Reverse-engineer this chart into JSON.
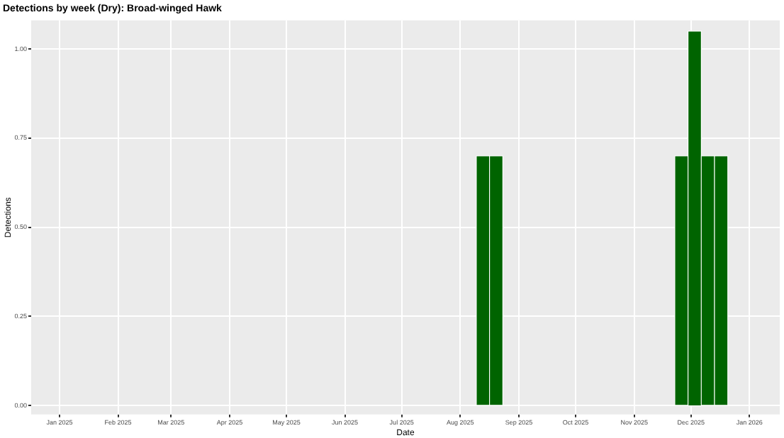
{
  "chart_data": {
    "type": "bar",
    "title": "Detections by week (Dry): Broad-winged Hawk",
    "xlabel": "Date",
    "ylabel": "Detections",
    "x": [
      "2025-08-13",
      "2025-08-20",
      "2025-11-26",
      "2025-12-03",
      "2025-12-10",
      "2025-12-17"
    ],
    "values": [
      0.7,
      0.7,
      0.7,
      1.05,
      0.7,
      0.7
    ],
    "color": "#006400",
    "xlim": [
      "2024-12-17",
      "2026-01-17"
    ],
    "xticks": [
      {
        "value": "2025-01-01",
        "label": "Jan 2025"
      },
      {
        "value": "2025-02-01",
        "label": "Feb 2025"
      },
      {
        "value": "2025-03-01",
        "label": "Mar 2025"
      },
      {
        "value": "2025-04-01",
        "label": "Apr 2025"
      },
      {
        "value": "2025-05-01",
        "label": "May 2025"
      },
      {
        "value": "2025-06-01",
        "label": "Jun 2025"
      },
      {
        "value": "2025-07-01",
        "label": "Jul 2025"
      },
      {
        "value": "2025-08-01",
        "label": "Aug 2025"
      },
      {
        "value": "2025-09-01",
        "label": "Sep 2025"
      },
      {
        "value": "2025-10-01",
        "label": "Oct 2025"
      },
      {
        "value": "2025-11-01",
        "label": "Nov 2025"
      },
      {
        "value": "2025-12-01",
        "label": "Dec 2025"
      },
      {
        "value": "2026-01-01",
        "label": "Jan 2026"
      }
    ],
    "ylim": [
      -0.025,
      1.08
    ],
    "yticks": [
      {
        "value": 0,
        "label": "0.00"
      },
      {
        "value": 0.25,
        "label": "0.25"
      },
      {
        "value": 0.5,
        "label": "0.50"
      },
      {
        "value": 0.75,
        "label": "0.75"
      },
      {
        "value": 1,
        "label": "1.00"
      }
    ],
    "grid": true,
    "legend": false
  }
}
